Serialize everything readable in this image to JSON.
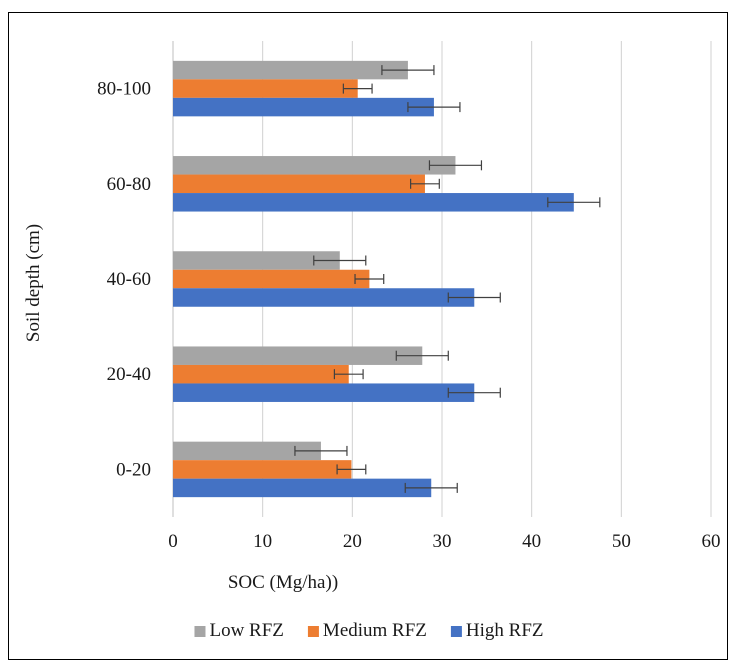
{
  "chart_data": {
    "type": "bar",
    "orientation": "horizontal",
    "title": "",
    "xlabel": "SOC (Mg/ha))",
    "ylabel": "Soil depth (cm)",
    "xlim": [
      0,
      60
    ],
    "x_ticks": [
      "0",
      "10",
      "20",
      "30",
      "40",
      "50",
      "60"
    ],
    "grid": "vertical",
    "legend_position": "bottom",
    "categories": [
      "0-20",
      "20-40",
      "40-60",
      "60-80",
      "80-100"
    ],
    "series": [
      {
        "name": "Low RFZ",
        "color": "#a5a5a5",
        "values": [
          16.5,
          27.8,
          18.6,
          31.5,
          26.2
        ],
        "errors": [
          2.9,
          2.9,
          2.9,
          2.9,
          2.9
        ]
      },
      {
        "name": "Medium RFZ",
        "color": "#ed7d31",
        "values": [
          19.9,
          19.6,
          21.9,
          28.1,
          20.6
        ],
        "errors": [
          1.6,
          1.6,
          1.6,
          1.6,
          1.6
        ]
      },
      {
        "name": "High RFZ",
        "color": "#4472c4",
        "values": [
          28.8,
          33.6,
          33.6,
          44.7,
          29.1
        ],
        "errors": [
          2.9,
          2.9,
          2.9,
          2.9,
          2.9
        ]
      }
    ]
  }
}
